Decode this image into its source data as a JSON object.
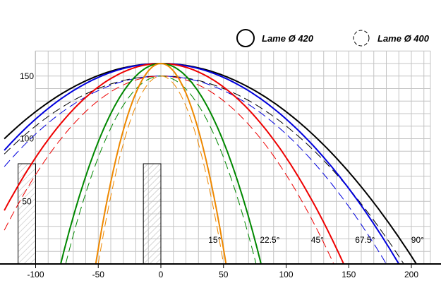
{
  "chart_data": {
    "type": "line",
    "title": "",
    "xlabel": "",
    "ylabel": "",
    "xlim": [
      -113,
      215
    ],
    "ylim": [
      0,
      170
    ],
    "grid": true,
    "legend_position": "top-right",
    "x_ticks": [
      -100,
      -50,
      0,
      50,
      100,
      150,
      200
    ],
    "x_tick_labels": [
      "-100",
      "-50",
      "0",
      "50",
      "100",
      "150",
      "200"
    ],
    "y_ticks": [
      50,
      100,
      150
    ],
    "y_tick_labels": [
      "50",
      "100",
      "150"
    ],
    "legend": [
      {
        "label": "Lame Ø 420",
        "style": "solid"
      },
      {
        "label": "Lame Ø 400",
        "style": "dashed"
      }
    ],
    "angle_labels": [
      {
        "text": "15°",
        "x": 43,
        "y": 17
      },
      {
        "text": "22.5°",
        "x": 87,
        "y": 17
      },
      {
        "text": "45°",
        "x": 125,
        "y": 17
      },
      {
        "text": "67.5°",
        "x": 163,
        "y": 17
      },
      {
        "text": "90°",
        "x": 205,
        "y": 17
      }
    ],
    "obstacles": [
      {
        "x": [
          -114,
          -100
        ],
        "y": [
          0,
          80
        ]
      },
      {
        "x": [
          -14,
          0
        ],
        "y": [
          0,
          80
        ]
      }
    ],
    "series": [
      {
        "angle": "90°",
        "blade": "Ø 420",
        "color": "#000000",
        "style": "solid",
        "cx": 0,
        "top": 160,
        "halfwidth": 204,
        "xmin": -125,
        "xmax": 204
      },
      {
        "angle": "90°",
        "blade": "Ø 400",
        "color": "#000000",
        "style": "dashed",
        "cx": 0,
        "top": 150,
        "halfwidth": 194,
        "xmin": -125,
        "xmax": 194
      },
      {
        "angle": "67.5°",
        "blade": "Ø 420",
        "color": "#0000dd",
        "style": "solid",
        "cx": 0,
        "top": 160,
        "halfwidth": 190,
        "xmin": -125,
        "xmax": 190
      },
      {
        "angle": "67.5°",
        "blade": "Ø 400",
        "color": "#0000dd",
        "style": "dashed",
        "cx": 0,
        "top": 150,
        "halfwidth": 180,
        "xmin": -125,
        "xmax": 180
      },
      {
        "angle": "45°",
        "blade": "Ø 420",
        "color": "#ee0000",
        "style": "solid",
        "cx": 0,
        "top": 160,
        "halfwidth": 146,
        "xmin": -125,
        "xmax": 146
      },
      {
        "angle": "45°",
        "blade": "Ø 400",
        "color": "#ee0000",
        "style": "dashed",
        "cx": 0,
        "top": 150,
        "halfwidth": 138,
        "xmin": -125,
        "xmax": 138
      },
      {
        "angle": "22.5°",
        "blade": "Ø 420",
        "color": "#008800",
        "style": "solid",
        "cx": 0,
        "top": 160,
        "halfwidth": 80,
        "xmin": -80,
        "xmax": 80
      },
      {
        "angle": "22.5°",
        "blade": "Ø 400",
        "color": "#008800",
        "style": "dashed",
        "cx": 0,
        "top": 150,
        "halfwidth": 76,
        "xmin": -76,
        "xmax": 76
      },
      {
        "angle": "15°",
        "blade": "Ø 420",
        "color": "#ee8800",
        "style": "solid",
        "cx": 0,
        "top": 160,
        "halfwidth": 52,
        "xmin": -52,
        "xmax": 52
      },
      {
        "angle": "15°",
        "blade": "Ø 400",
        "color": "#ee8800",
        "style": "dashed",
        "cx": 0,
        "top": 150,
        "halfwidth": 50,
        "xmin": -50,
        "xmax": 50
      }
    ]
  }
}
